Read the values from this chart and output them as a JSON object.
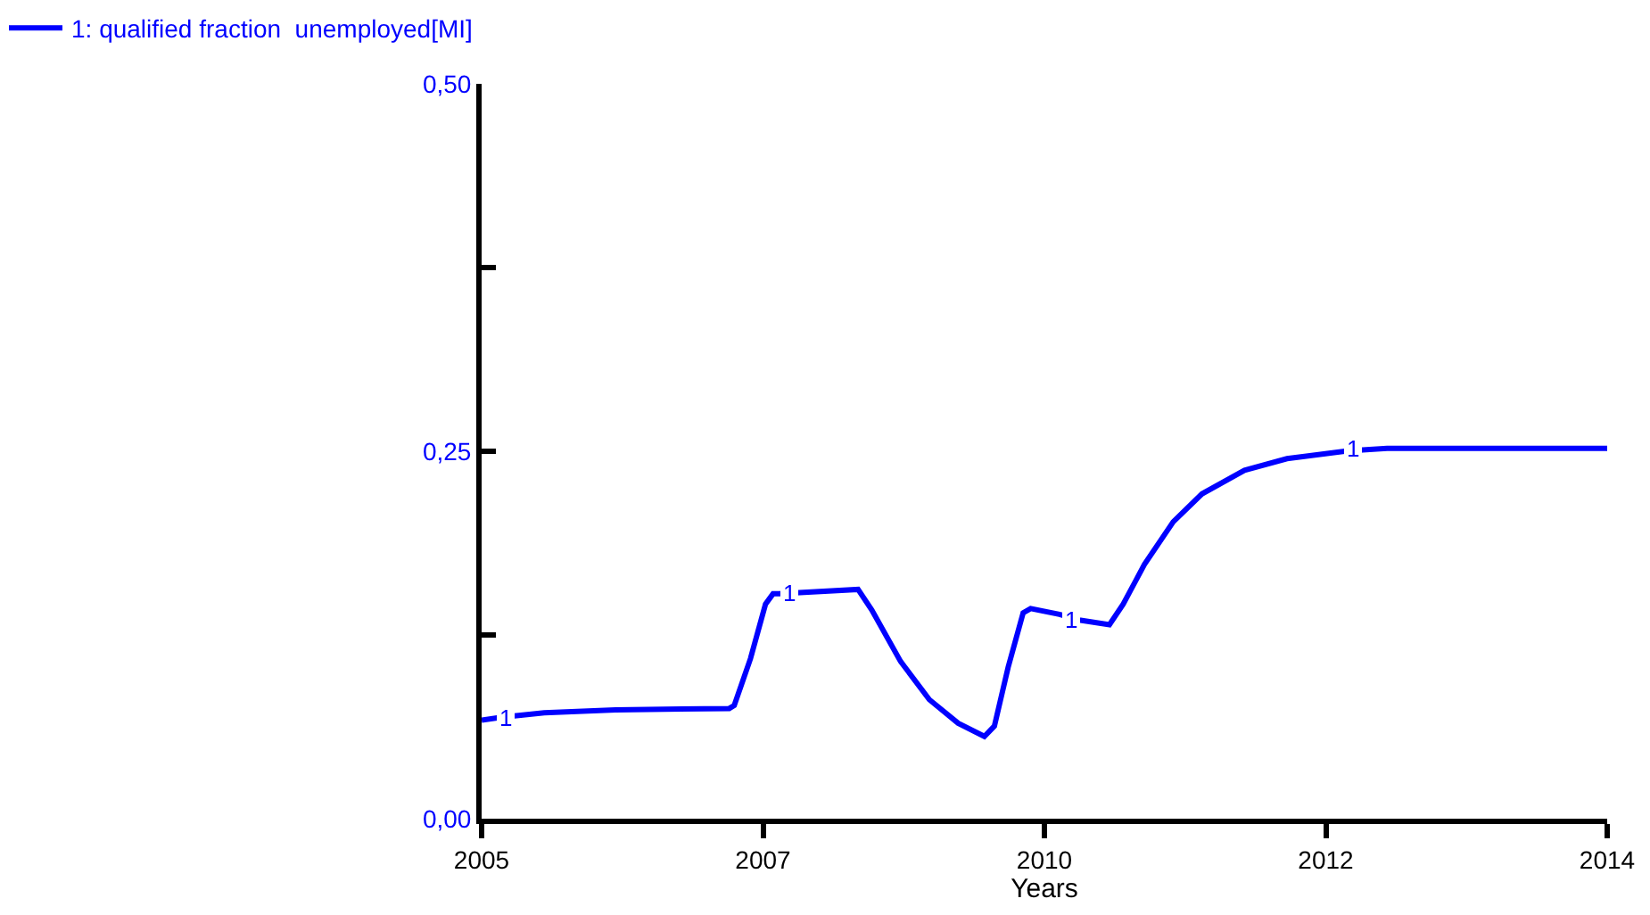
{
  "chart_data": {
    "type": "line",
    "xlabel": "Years",
    "x": [
      2005,
      2005.16,
      2005.5,
      2006.07,
      2006.98,
      2007.02,
      2007.15,
      2007.27,
      2007.33,
      2007.38,
      2008.01,
      2008.12,
      2008.35,
      2008.58,
      2008.81,
      2009.02,
      2009.1,
      2009.21,
      2009.33,
      2009.39,
      2009.62,
      2009.79,
      2010.02,
      2010.13,
      2010.3,
      2010.53,
      2010.76,
      2011.1,
      2011.44,
      2011.9,
      2012.24,
      2014
    ],
    "series": [
      {
        "name": "1: qualified fraction  unemployed[MI]",
        "color": "#0000ff",
        "values": [
          0.067,
          0.069,
          0.072,
          0.074,
          0.075,
          0.077,
          0.109,
          0.146,
          0.153,
          0.153,
          0.156,
          0.142,
          0.107,
          0.081,
          0.065,
          0.056,
          0.063,
          0.103,
          0.14,
          0.143,
          0.139,
          0.135,
          0.132,
          0.146,
          0.173,
          0.202,
          0.221,
          0.237,
          0.245,
          0.25,
          0.252,
          0.252
        ]
      }
    ],
    "xlim": [
      2005,
      2014
    ],
    "xticks": [
      2005,
      {
        "value": 2007.25,
        "label": "2007"
      },
      {
        "value": 2009.5,
        "label": "2010"
      },
      {
        "value": 2011.75,
        "label": "2012"
      },
      2014
    ],
    "ylim": [
      0,
      0.5
    ],
    "yticks": [
      {
        "value": 0,
        "label": "0,00"
      },
      {
        "value": 0.125,
        "label": null
      },
      {
        "value": 0.25,
        "label": "0,25"
      },
      {
        "value": 0.375,
        "label": null
      },
      {
        "value": 0.5,
        "label": "0,50"
      }
    ],
    "annotations": [
      {
        "text": "1",
        "x": 2005.19,
        "y": 0.069
      },
      {
        "text": "1",
        "x": 2007.46,
        "y": 0.153
      },
      {
        "text": "1",
        "x": 2009.72,
        "y": 0.135
      },
      {
        "text": "1",
        "x": 2011.97,
        "y": 0.252
      }
    ],
    "grid": false,
    "legend": "top left",
    "marker": "none",
    "line_style": "solid"
  }
}
